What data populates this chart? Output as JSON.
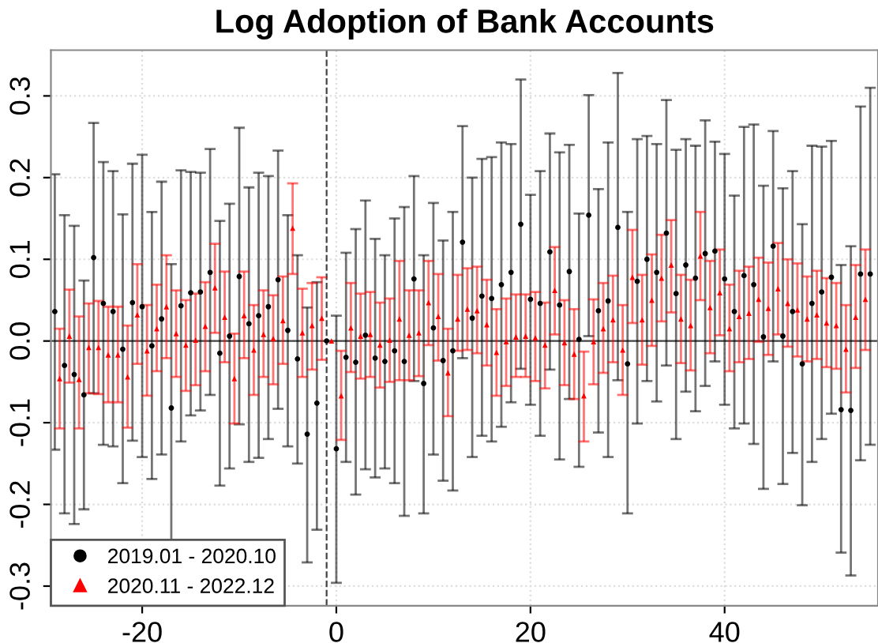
{
  "chart_data": {
    "type": "scatter",
    "title": "Log Adoption of Bank Accounts",
    "xlim": [
      -29.4,
      55.8
    ],
    "xticks": [
      -20,
      0,
      20,
      40
    ],
    "ylim": [
      -0.324,
      0.356
    ],
    "yticks": [
      -0.3,
      -0.2,
      -0.1,
      {
        "value": 0,
        "label": "0.0"
      },
      0.1,
      0.2,
      0.3
    ],
    "grid": true,
    "legend": "bottom left",
    "ref_lines": [
      {
        "axis": "x",
        "value": -1,
        "color": "#444444",
        "line_style": "dashed"
      },
      {
        "axis": "y",
        "value": 0,
        "color": "#444444",
        "line_style": "solid"
      }
    ],
    "series": [
      {
        "name": "2019.01 - 2020.10",
        "color": "#000000",
        "marker": "circle",
        "x": [
          -29,
          -28,
          -27,
          -26,
          -25,
          -24,
          -23,
          -22,
          -21,
          -20,
          -19,
          -18,
          -17,
          -16,
          -15,
          -14,
          -13,
          -12,
          -11,
          -10,
          -9,
          -8,
          -7,
          -6,
          -5,
          -4,
          -3,
          -2,
          -1,
          0,
          1,
          2,
          3,
          4,
          5,
          6,
          7,
          8,
          9,
          10,
          11,
          12,
          13,
          14,
          15,
          16,
          17,
          18,
          19,
          20,
          21,
          22,
          23,
          24,
          25,
          26,
          27,
          28,
          29,
          30,
          31,
          32,
          33,
          34,
          35,
          36,
          37,
          38,
          39,
          40,
          41,
          42,
          43,
          44,
          45,
          46,
          47,
          48,
          49,
          50,
          51,
          52,
          53,
          54,
          55
        ],
        "values": [
          0.036,
          -0.03,
          -0.041,
          -0.066,
          0.102,
          0.046,
          0.036,
          -0.01,
          0.047,
          0.042,
          -0.006,
          0.027,
          -0.082,
          0.043,
          0.059,
          0.06,
          0.084,
          -0.015,
          0.006,
          0.079,
          0.021,
          0.031,
          0.042,
          0.075,
          0.013,
          -0.022,
          -0.114,
          -0.076,
          0,
          -0.132,
          -0.02,
          -0.026,
          0.007,
          -0.021,
          -0.025,
          -0.012,
          -0.025,
          0.076,
          -0.052,
          0.016,
          -0.024,
          -0.012,
          0.121,
          0.028,
          0.055,
          0.052,
          0.069,
          0.084,
          0.143,
          0.051,
          0.046,
          0.109,
          0.044,
          0.085,
          0.002,
          0.154,
          0.037,
          0.049,
          0.139,
          -0.028,
          0.073,
          0.1,
          0.084,
          0.132,
          0.058,
          0.093,
          0.077,
          0.107,
          0.11,
          0.076,
          0.036,
          0.08,
          0.069,
          0.005,
          0.116,
          0.006,
          0.036,
          -0.028,
          0.046,
          0.06,
          0.078,
          -0.084,
          -0.085,
          0.082,
          0.082
        ],
        "errors": [
          [
            -0.133,
            0.204
          ],
          [
            -0.211,
            0.154
          ],
          [
            -0.224,
            0.141
          ],
          [
            -0.206,
            0.074
          ],
          [
            -0.064,
            0.267
          ],
          [
            -0.127,
            0.219
          ],
          [
            -0.129,
            0.208
          ],
          [
            -0.174,
            0.155
          ],
          [
            -0.122,
            0.217
          ],
          [
            -0.142,
            0.228
          ],
          [
            -0.169,
            0.158
          ],
          [
            -0.139,
            0.195
          ],
          [
            -0.26,
            0.094
          ],
          [
            -0.123,
            0.209
          ],
          [
            -0.091,
            0.207
          ],
          [
            -0.085,
            0.206
          ],
          [
            -0.066,
            0.235
          ],
          [
            -0.177,
            0.147
          ],
          [
            -0.156,
            0.168
          ],
          [
            -0.102,
            0.261
          ],
          [
            -0.148,
            0.188
          ],
          [
            -0.143,
            0.206
          ],
          [
            -0.12,
            0.202
          ],
          [
            -0.083,
            0.233
          ],
          [
            -0.129,
            0.154
          ],
          [
            -0.15,
            0.105
          ],
          [
            -0.271,
            0.041
          ],
          [
            -0.231,
            0.072
          ],
          null,
          [
            -0.296,
            0.031
          ],
          [
            -0.148,
            0.108
          ],
          [
            -0.188,
            0.137
          ],
          [
            -0.157,
            0.172
          ],
          [
            -0.167,
            0.125
          ],
          [
            -0.156,
            0.105
          ],
          [
            -0.174,
            0.15
          ],
          [
            -0.214,
            0.164
          ],
          [
            -0.049,
            0.202
          ],
          [
            -0.211,
            0.105
          ],
          [
            -0.139,
            0.169
          ],
          [
            -0.171,
            0.123
          ],
          [
            -0.183,
            0.158
          ],
          [
            -0.021,
            0.263
          ],
          [
            -0.142,
            0.2
          ],
          [
            -0.116,
            0.223
          ],
          [
            -0.123,
            0.225
          ],
          [
            -0.105,
            0.243
          ],
          [
            -0.075,
            0.241
          ],
          [
            -0.034,
            0.32
          ],
          [
            -0.078,
            0.179
          ],
          [
            -0.116,
            0.208
          ],
          [
            -0.035,
            0.254
          ],
          [
            -0.145,
            0.231
          ],
          [
            -0.071,
            0.24
          ],
          [
            -0.154,
            0.156
          ],
          [
            0.006,
            0.301
          ],
          [
            -0.112,
            0.186
          ],
          [
            -0.142,
            0.243
          ],
          [
            -0.048,
            0.328
          ],
          [
            -0.211,
            0.158
          ],
          [
            -0.101,
            0.247
          ],
          [
            -0.049,
            0.251
          ],
          [
            -0.074,
            0.241
          ],
          [
            -0.03,
            0.295
          ],
          [
            -0.12,
            0.234
          ],
          [
            -0.062,
            0.247
          ],
          [
            -0.086,
            0.239
          ],
          [
            -0.055,
            0.27
          ],
          [
            -0.025,
            0.244
          ],
          [
            -0.078,
            0.229
          ],
          [
            -0.107,
            0.178
          ],
          [
            -0.101,
            0.262
          ],
          [
            -0.126,
            0.265
          ],
          [
            -0.181,
            0.19
          ],
          [
            -0.025,
            0.257
          ],
          [
            -0.175,
            0.187
          ],
          [
            -0.137,
            0.208
          ],
          [
            -0.201,
            0.143
          ],
          [
            -0.148,
            0.239
          ],
          [
            -0.12,
            0.238
          ],
          [
            -0.089,
            0.245
          ],
          [
            -0.259,
            0.093
          ],
          [
            -0.287,
            0.116
          ],
          [
            -0.146,
            0.287
          ],
          [
            -0.127,
            0.31
          ]
        ]
      },
      {
        "name": "2020.11 - 2022.12",
        "color": "#ff0000",
        "marker": "triangle",
        "x": [
          -28.5,
          -27.5,
          -26.5,
          -25.5,
          -24.5,
          -23.5,
          -22.5,
          -21.5,
          -20.5,
          -19.5,
          -18.5,
          -17.5,
          -16.5,
          -15.5,
          -14.5,
          -13.5,
          -12.5,
          -11.5,
          -10.5,
          -9.5,
          -8.5,
          -7.5,
          -6.5,
          -5.5,
          -4.5,
          -3.5,
          -2.5,
          -1.5,
          -0.5,
          0.5,
          1.5,
          2.5,
          3.5,
          4.5,
          5.5,
          6.5,
          7.5,
          8.5,
          9.5,
          10.5,
          11.5,
          12.5,
          13.5,
          14.5,
          15.5,
          16.5,
          17.5,
          18.5,
          19.5,
          20.5,
          21.5,
          22.5,
          23.5,
          24.5,
          25.5,
          26.5,
          27.5,
          28.5,
          29.5,
          30.5,
          31.5,
          32.5,
          33.5,
          34.5,
          35.5,
          36.5,
          37.5,
          38.5,
          39.5,
          40.5,
          41.5,
          42.5,
          43.5,
          44.5,
          45.5,
          46.5,
          47.5,
          48.5,
          49.5,
          50.5,
          51.5,
          52.5,
          53.5,
          54.5
        ],
        "values": [
          -0.046,
          0.006,
          -0.047,
          -0.008,
          -0.008,
          -0.017,
          -0.017,
          -0.044,
          0.032,
          -0.012,
          0.015,
          0.042,
          0.009,
          -0.005,
          0.001,
          0.018,
          0.065,
          0.029,
          -0.046,
          0.031,
          -0.011,
          0.008,
          0.003,
          0.025,
          0.138,
          0.01,
          0.019,
          0.028,
          0,
          -0.067,
          0.016,
          0.006,
          0.008,
          -0.005,
          0.001,
          0.027,
          0.007,
          0.01,
          0.047,
          0.03,
          -0.039,
          0.027,
          0.039,
          0.037,
          0.02,
          -0.014,
          -0.001,
          0.005,
          0.006,
          0.004,
          -0.005,
          0.062,
          -0.002,
          -0.016,
          -0.067,
          -0.001,
          0.015,
          0.026,
          -0.011,
          0.078,
          0.026,
          0.05,
          0.077,
          0.093,
          0.027,
          0.019,
          0.104,
          0.041,
          0.059,
          0.015,
          0.03,
          0.034,
          0.051,
          0.04,
          0.064,
          0.046,
          0.038,
          0.027,
          0.032,
          0.022,
          0.019,
          -0.01,
          0.029,
          0.051
        ],
        "errors": [
          [
            -0.107,
            0.015
          ],
          [
            -0.051,
            0.063
          ],
          [
            -0.107,
            0.03
          ],
          [
            -0.064,
            0.046
          ],
          [
            -0.065,
            0.049
          ],
          [
            -0.075,
            0.042
          ],
          [
            -0.075,
            0.042
          ],
          [
            -0.106,
            0.019
          ],
          [
            -0.028,
            0.094
          ],
          [
            -0.067,
            0.044
          ],
          [
            -0.037,
            0.069
          ],
          [
            -0.021,
            0.105
          ],
          [
            -0.044,
            0.062
          ],
          [
            -0.061,
            0.05
          ],
          [
            -0.054,
            0.058
          ],
          [
            -0.037,
            0.072
          ],
          [
            0.01,
            0.119
          ],
          [
            -0.026,
            0.085
          ],
          [
            -0.101,
            0.009
          ],
          [
            -0.021,
            0.085
          ],
          [
            -0.066,
            0.044
          ],
          [
            -0.044,
            0.062
          ],
          [
            -0.053,
            0.056
          ],
          [
            -0.028,
            0.079
          ],
          [
            0.082,
            0.193
          ],
          [
            -0.044,
            0.064
          ],
          [
            -0.035,
            0.071
          ],
          [
            -0.023,
            0.078
          ],
          null,
          [
            -0.121,
            -0.012
          ],
          [
            -0.038,
            0.071
          ],
          [
            -0.046,
            0.058
          ],
          [
            -0.044,
            0.06
          ],
          [
            -0.057,
            0.047
          ],
          [
            -0.05,
            0.052
          ],
          [
            -0.048,
            0.098
          ],
          [
            -0.048,
            0.062
          ],
          [
            -0.043,
            0.062
          ],
          [
            -0.005,
            0.098
          ],
          [
            -0.024,
            0.082
          ],
          [
            -0.092,
            0.015
          ],
          [
            -0.012,
            0.081
          ],
          [
            -0.011,
            0.089
          ],
          [
            -0.015,
            0.091
          ],
          [
            -0.03,
            0.075
          ],
          [
            -0.067,
            0.039
          ],
          [
            -0.055,
            0.052
          ],
          [
            -0.044,
            0.057
          ],
          [
            -0.044,
            0.057
          ],
          [
            -0.049,
            0.06
          ],
          [
            -0.058,
            0.047
          ],
          [
            0.008,
            0.115
          ],
          [
            -0.054,
            0.05
          ],
          [
            -0.071,
            0.039
          ],
          [
            -0.123,
            -0.013
          ],
          [
            -0.053,
            0.051
          ],
          [
            -0.039,
            0.071
          ],
          [
            -0.026,
            0.08
          ],
          [
            -0.066,
            0.044
          ],
          [
            0.022,
            0.136
          ],
          [
            -0.029,
            0.081
          ],
          [
            -0.006,
            0.106
          ],
          [
            0.024,
            0.13
          ],
          [
            0.035,
            0.148
          ],
          [
            -0.027,
            0.081
          ],
          [
            -0.036,
            0.075
          ],
          [
            0.05,
            0.158
          ],
          [
            -0.015,
            0.098
          ],
          [
            0.007,
            0.112
          ],
          [
            -0.037,
            0.069
          ],
          [
            -0.026,
            0.086
          ],
          [
            -0.022,
            0.091
          ],
          [
            -0.001,
            0.102
          ],
          [
            -0.017,
            0.096
          ],
          [
            0.008,
            0.12
          ],
          [
            -0.007,
            0.1
          ],
          [
            -0.019,
            0.095
          ],
          [
            -0.025,
            0.079
          ],
          [
            -0.022,
            0.086
          ],
          [
            -0.032,
            0.077
          ],
          [
            -0.034,
            0.071
          ],
          [
            -0.063,
            0.044
          ],
          [
            -0.033,
            0.093
          ],
          [
            -0.011,
            0.112
          ]
        ]
      }
    ]
  }
}
